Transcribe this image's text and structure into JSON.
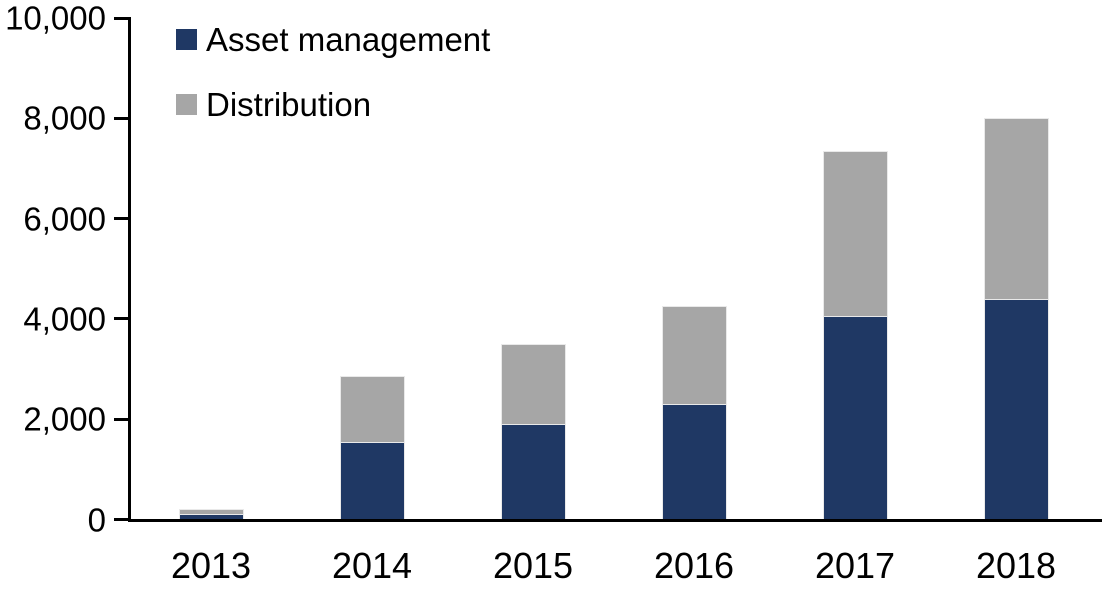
{
  "chart_data": {
    "type": "bar",
    "stacked": true,
    "categories": [
      "2013",
      "2014",
      "2015",
      "2016",
      "2017",
      "2018"
    ],
    "series": [
      {
        "name": "Asset management",
        "color": "#1F3864",
        "values": [
          100,
          1550,
          1900,
          2300,
          4050,
          4400
        ]
      },
      {
        "name": "Distribution",
        "color": "#A6A6A6",
        "values": [
          100,
          1320,
          1600,
          1950,
          3300,
          3600
        ]
      }
    ],
    "stack_totals": [
      200,
      2870,
      3500,
      4250,
      7350,
      8000
    ],
    "ylim": [
      0,
      10000
    ],
    "yticks": [
      0,
      2000,
      4000,
      6000,
      8000,
      10000
    ],
    "ytick_labels": [
      "0",
      "2,000",
      "4,000",
      "6,000",
      "8,000",
      "10,000"
    ],
    "xlabel": "",
    "ylabel": "",
    "grid": false,
    "legend_position": "top-left",
    "axis_color": "#000000",
    "text_color": "#000000",
    "background_color": "#ffffff"
  }
}
